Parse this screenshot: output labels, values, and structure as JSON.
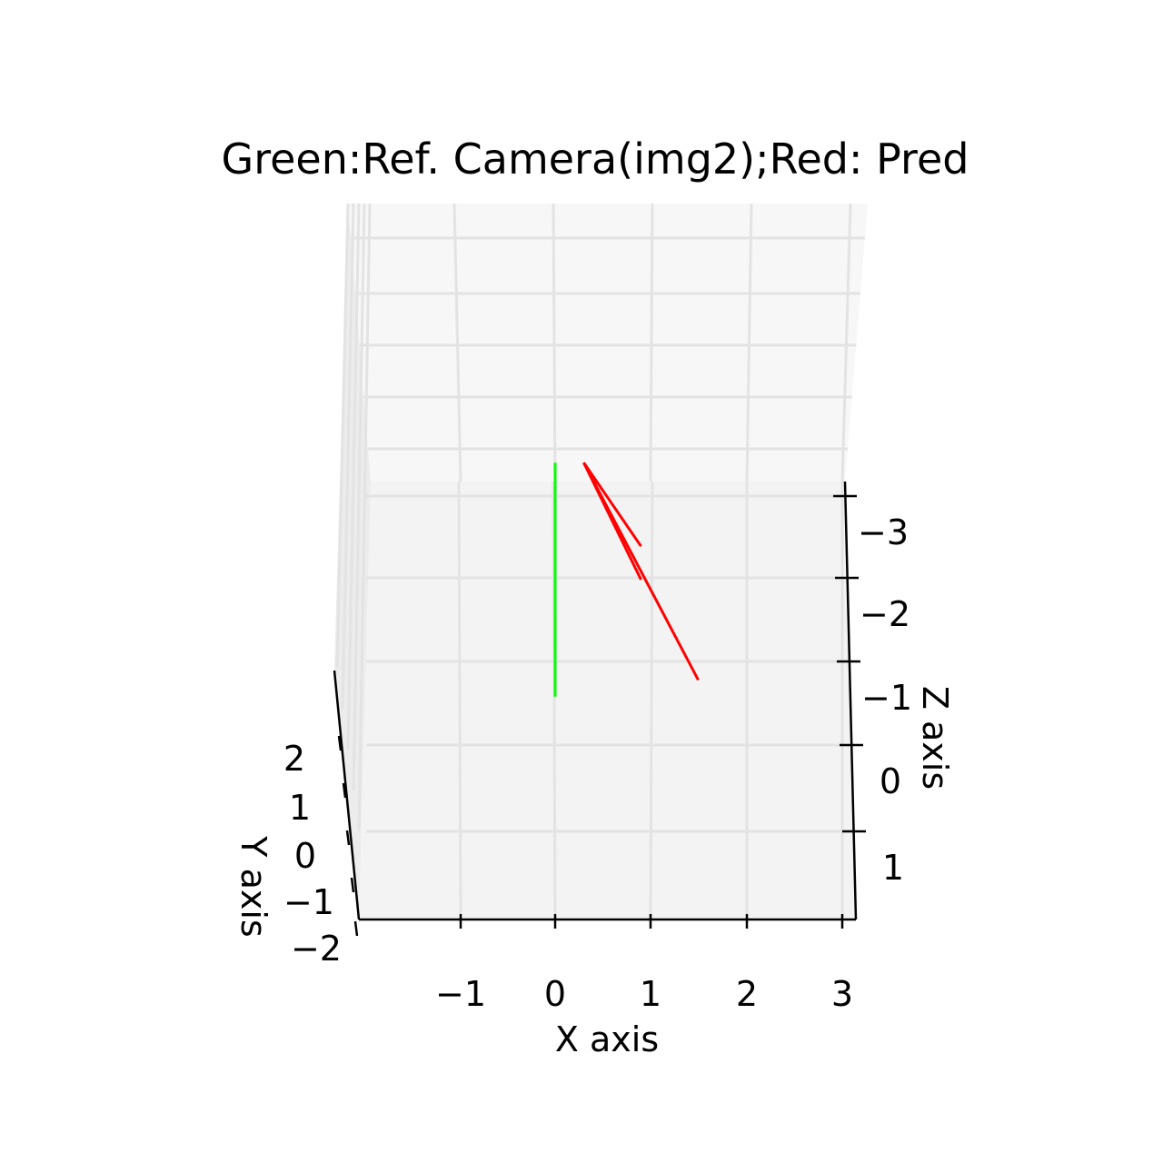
{
  "chart_data": {
    "type": "line",
    "projection": "3d",
    "title": "Green:Ref. Camera(img2);Red: Pred",
    "xlabel": "X axis",
    "ylabel": "Y axis",
    "zlabel": "Z axis",
    "x_ticks": [
      "−1",
      "0",
      "1",
      "2",
      "3"
    ],
    "y_ticks": [
      "2",
      "1",
      "0",
      "−1",
      "−2"
    ],
    "z_ticks": [
      "−3",
      "−2",
      "−1",
      "0",
      "1"
    ],
    "grid": true,
    "series": [
      {
        "color": "#00ff00",
        "segments": [
          [
            [
              0.0,
              -3.4
            ],
            [
              0.0,
              -0.6
            ]
          ],
          [
            [
              0.0,
              -2.3
            ],
            [
              0.0,
              -2.0
            ]
          ]
        ]
      },
      {
        "color": "#ff0000",
        "segments": [
          [
            [
              0.3,
              -3.4
            ],
            [
              1.5,
              -0.8
            ]
          ],
          [
            [
              0.3,
              -3.4
            ],
            [
              0.9,
              -2.4
            ]
          ],
          [
            [
              0.3,
              -3.4
            ],
            [
              0.9,
              -2.0
            ]
          ]
        ]
      }
    ]
  }
}
